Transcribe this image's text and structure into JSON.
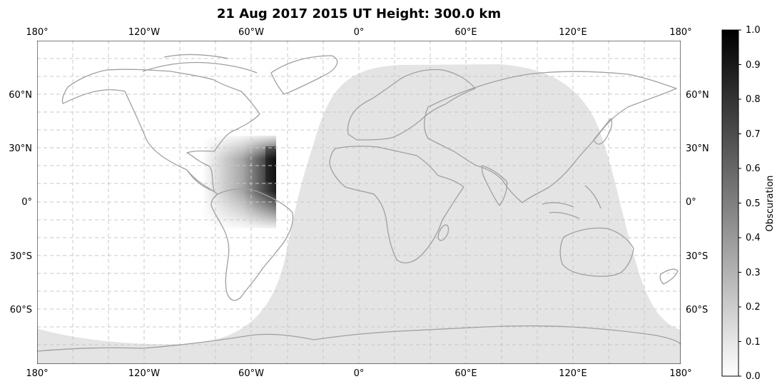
{
  "title": "21 Aug 2017 2015 UT Height: 300.0 km",
  "lon_ticks": [
    "180°",
    "120°W",
    "60°W",
    "0°",
    "60°E",
    "120°E",
    "180°"
  ],
  "lat_ticks": [
    "60°N",
    "30°N",
    "0°",
    "30°S",
    "60°S"
  ],
  "colorbar": {
    "label": "Obscuration",
    "ticks": [
      "0.0",
      "0.1",
      "0.2",
      "0.3",
      "0.4",
      "0.5",
      "0.6",
      "0.7",
      "0.8",
      "0.9",
      "1.0"
    ],
    "min_color": "#ffffff",
    "max_color": "#000000"
  },
  "map": {
    "projection": "plate-carree",
    "lon_range": [
      -180,
      180
    ],
    "lat_range": [
      -90,
      90
    ],
    "night_shade_color": "#e4e4e4",
    "coastline_color": "#a0a0a0",
    "gridline_style": "dashed",
    "gridline_color": "#c8c8c8",
    "eclipse_region": {
      "lon_range": [
        -90,
        -45
      ],
      "lat_range": [
        -15,
        35
      ],
      "peak_obscuration": 0.9
    }
  },
  "colors": {
    "title": "#000000",
    "axis": "#000000",
    "background": "#ffffff"
  }
}
